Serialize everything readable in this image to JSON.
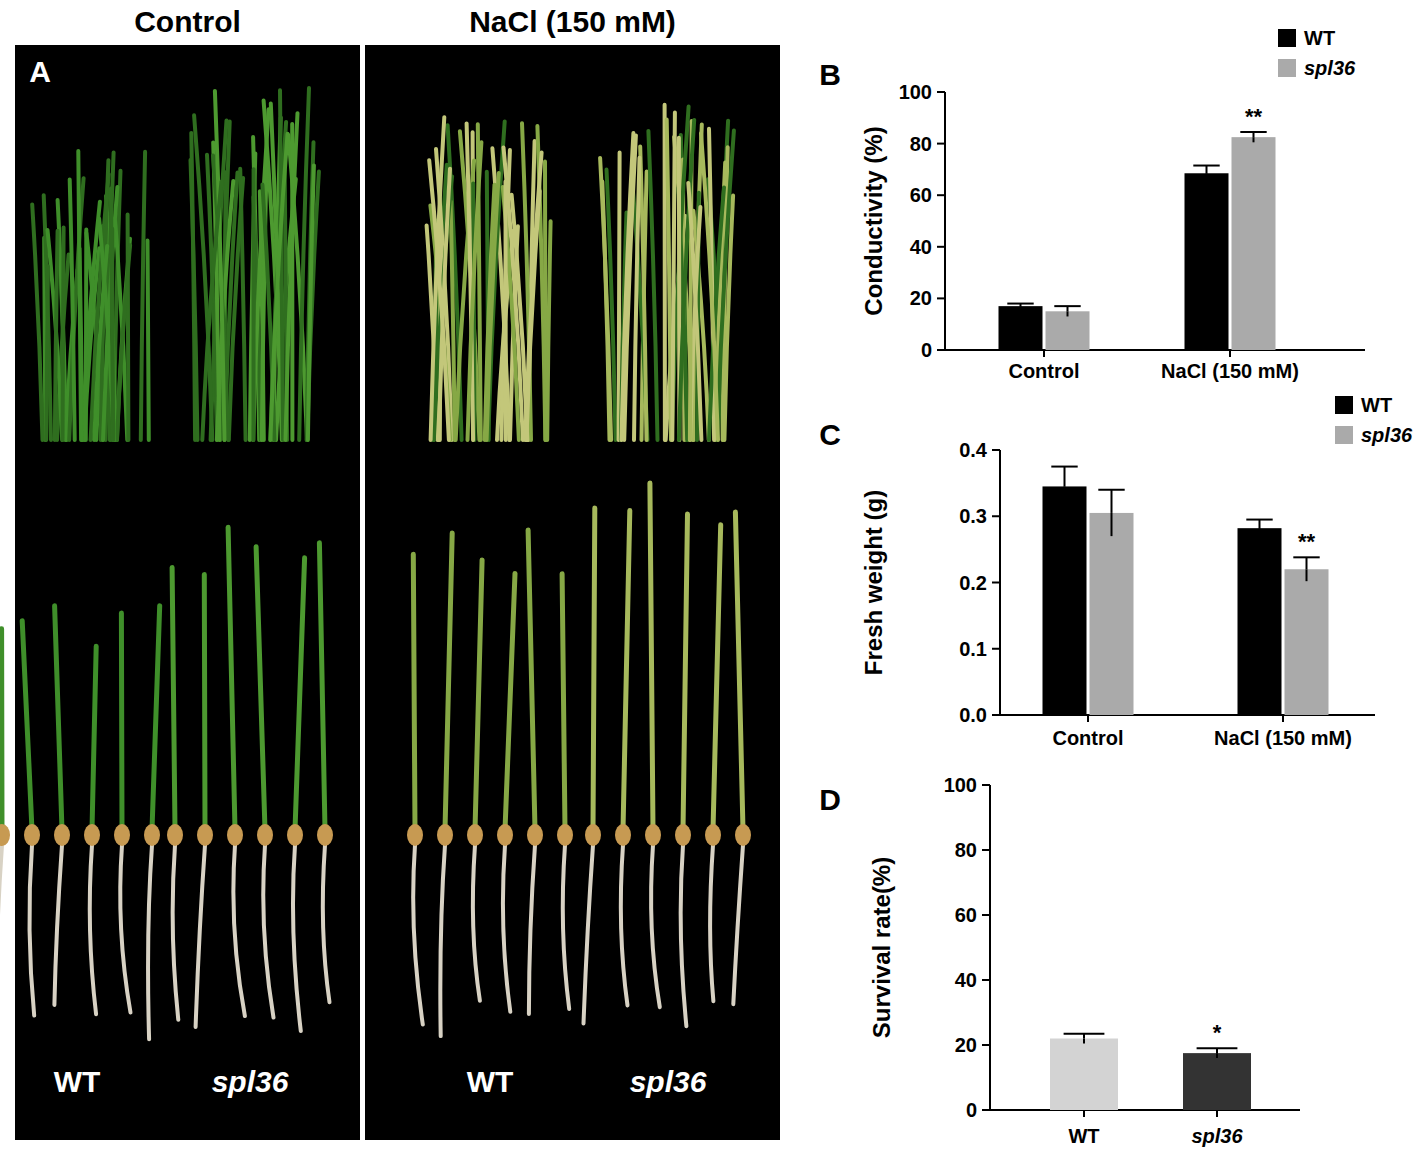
{
  "panel_a": {
    "panel": "A",
    "conditions": [
      {
        "title": "Control",
        "genotypes": [
          "WT",
          "spl36"
        ]
      },
      {
        "title": "NaCl (150 mM)",
        "genotypes": [
          "WT",
          "spl36"
        ]
      }
    ]
  },
  "chart_data": [
    {
      "type": "bar",
      "panel": "B",
      "y_label": "Conductivity (%)",
      "categories": [
        "Control",
        "NaCl (150 mM)"
      ],
      "series": [
        {
          "name": "WT",
          "color": "#000000",
          "values": [
            17,
            68.5
          ],
          "errors": [
            1,
            3
          ],
          "significance": [
            null,
            null
          ]
        },
        {
          "name": "spl36",
          "color": "#aaaaaa",
          "values": [
            15,
            82.5
          ],
          "errors": [
            2,
            2
          ],
          "significance": [
            null,
            "**"
          ]
        }
      ],
      "ylim": [
        0,
        100
      ],
      "yticks": [
        0,
        20,
        40,
        60,
        80,
        100
      ],
      "legend": "top-right"
    },
    {
      "type": "bar",
      "panel": "C",
      "y_label": "Fresh weight (g)",
      "categories": [
        "Control",
        "NaCl (150 mM)"
      ],
      "series": [
        {
          "name": "WT",
          "color": "#000000",
          "values": [
            0.345,
            0.282
          ],
          "errors": [
            0.03,
            0.013
          ],
          "significance": [
            null,
            null
          ]
        },
        {
          "name": "spl36",
          "color": "#aaaaaa",
          "values": [
            0.305,
            0.22
          ],
          "errors": [
            0.035,
            0.018
          ],
          "significance": [
            null,
            "**"
          ]
        }
      ],
      "ylim": [
        0,
        0.4
      ],
      "yticks": [
        {
          "value": 0,
          "label": "0.0"
        },
        0.1,
        0.2,
        0.3,
        0.4
      ],
      "legend": "top-right"
    },
    {
      "type": "bar",
      "panel": "D",
      "y_label": "Survival rate(%)",
      "categories": [
        "WT",
        "spl36"
      ],
      "values": [
        22,
        17.5
      ],
      "errors": [
        1.5,
        1.5
      ],
      "significance": [
        null,
        "*"
      ],
      "colors": [
        "#d3d3d3",
        "#333333"
      ],
      "ylim": [
        0,
        100
      ],
      "yticks": [
        0,
        20,
        40,
        60,
        80,
        100
      ]
    }
  ]
}
